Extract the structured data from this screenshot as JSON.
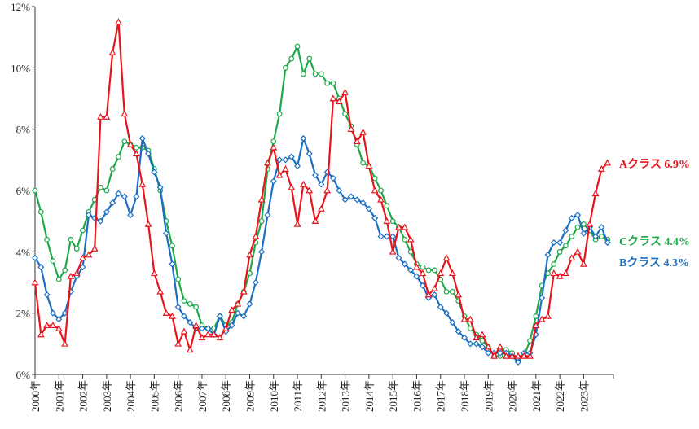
{
  "chart_data": {
    "type": "line",
    "title": "",
    "xlabel": "",
    "ylabel": "",
    "x_tick_labels": [
      "2000年",
      "2001年",
      "2002年",
      "2003年",
      "2004年",
      "2005年",
      "2006年",
      "2007年",
      "2008年",
      "2009年",
      "2010年",
      "2011年",
      "2012年",
      "2013年",
      "2014年",
      "2015年",
      "2016年",
      "2017年",
      "2018年",
      "2019年",
      "2020年",
      "2021年",
      "2022年",
      "2023年"
    ],
    "y_tick_labels": [
      "0%",
      "2%",
      "4%",
      "6%",
      "8%",
      "10%",
      "12%"
    ],
    "ylim": [
      0,
      12
    ],
    "xlim": [
      2000,
      2024.25
    ],
    "grid": false,
    "series": [
      {
        "name": "Aクラス",
        "label": "Aクラス 6.9%",
        "color": "#e8141c",
        "marker": "triangle",
        "x": [
          2000.0,
          2000.25,
          2000.5,
          2000.75,
          2001.0,
          2001.25,
          2001.5,
          2001.75,
          2002.0,
          2002.25,
          2002.5,
          2002.75,
          2003.0,
          2003.25,
          2003.5,
          2003.75,
          2004.0,
          2004.25,
          2004.5,
          2004.75,
          2005.0,
          2005.25,
          2005.5,
          2005.75,
          2006.0,
          2006.25,
          2006.5,
          2006.75,
          2007.0,
          2007.25,
          2007.5,
          2007.75,
          2008.0,
          2008.25,
          2008.5,
          2008.75,
          2009.0,
          2009.25,
          2009.5,
          2009.75,
          2010.0,
          2010.25,
          2010.5,
          2010.75,
          2011.0,
          2011.25,
          2011.5,
          2011.75,
          2012.0,
          2012.25,
          2012.5,
          2012.75,
          2013.0,
          2013.25,
          2013.5,
          2013.75,
          2014.0,
          2014.25,
          2014.5,
          2014.75,
          2015.0,
          2015.25,
          2015.5,
          2015.75,
          2016.0,
          2016.25,
          2016.5,
          2016.75,
          2017.0,
          2017.25,
          2017.5,
          2017.75,
          2018.0,
          2018.25,
          2018.5,
          2018.75,
          2019.0,
          2019.25,
          2019.5,
          2019.75,
          2020.0,
          2020.25,
          2020.5,
          2020.75,
          2021.0,
          2021.25,
          2021.5,
          2021.75,
          2022.0,
          2022.25,
          2022.5,
          2022.75,
          2023.0,
          2023.25,
          2023.5,
          2023.75,
          2024.0
        ],
        "values": [
          3.0,
          1.3,
          1.6,
          1.6,
          1.5,
          1.0,
          3.2,
          3.3,
          3.8,
          3.9,
          4.1,
          8.4,
          8.4,
          10.5,
          11.5,
          8.5,
          7.5,
          7.2,
          6.2,
          4.9,
          3.3,
          2.7,
          2.0,
          1.9,
          1.0,
          1.4,
          0.8,
          1.6,
          1.2,
          1.3,
          1.3,
          1.2,
          1.5,
          2.1,
          2.3,
          2.7,
          3.9,
          4.5,
          5.7,
          6.9,
          7.4,
          6.5,
          6.7,
          6.1,
          4.9,
          6.2,
          6.0,
          5.0,
          5.4,
          6.0,
          9.0,
          8.9,
          9.2,
          8.0,
          7.6,
          7.9,
          6.8,
          6.0,
          5.7,
          5.0,
          4.0,
          4.8,
          4.8,
          4.4,
          3.5,
          3.3,
          2.6,
          2.8,
          3.3,
          3.8,
          3.3,
          2.6,
          1.8,
          1.8,
          1.2,
          1.3,
          0.9,
          0.6,
          0.9,
          0.6,
          0.6,
          0.6,
          0.6,
          0.6,
          1.6,
          1.8,
          1.9,
          3.3,
          3.2,
          3.3,
          3.8,
          4.0,
          3.6,
          4.9,
          5.9,
          6.7,
          6.9
        ]
      },
      {
        "name": "Bクラス",
        "label": "Bクラス 4.3%",
        "color": "#1b6ec2",
        "marker": "diamond",
        "x": [
          2000.0,
          2000.25,
          2000.5,
          2000.75,
          2001.0,
          2001.25,
          2001.5,
          2001.75,
          2002.0,
          2002.25,
          2002.5,
          2002.75,
          2003.0,
          2003.25,
          2003.5,
          2003.75,
          2004.0,
          2004.25,
          2004.5,
          2004.75,
          2005.0,
          2005.25,
          2005.5,
          2005.75,
          2006.0,
          2006.25,
          2006.5,
          2006.75,
          2007.0,
          2007.25,
          2007.5,
          2007.75,
          2008.0,
          2008.25,
          2008.5,
          2008.75,
          2009.0,
          2009.25,
          2009.5,
          2009.75,
          2010.0,
          2010.25,
          2010.5,
          2010.75,
          2011.0,
          2011.25,
          2011.5,
          2011.75,
          2012.0,
          2012.25,
          2012.5,
          2012.75,
          2013.0,
          2013.25,
          2013.5,
          2013.75,
          2014.0,
          2014.25,
          2014.5,
          2014.75,
          2015.0,
          2015.25,
          2015.5,
          2015.75,
          2016.0,
          2016.25,
          2016.5,
          2016.75,
          2017.0,
          2017.25,
          2017.5,
          2017.75,
          2018.0,
          2018.25,
          2018.5,
          2018.75,
          2019.0,
          2019.25,
          2019.5,
          2019.75,
          2020.0,
          2020.25,
          2020.5,
          2020.75,
          2021.0,
          2021.25,
          2021.5,
          2021.75,
          2022.0,
          2022.25,
          2022.5,
          2022.75,
          2023.0,
          2023.25,
          2023.5,
          2023.75,
          2024.0
        ],
        "values": [
          3.8,
          3.5,
          2.6,
          2.0,
          1.8,
          2.0,
          2.7,
          3.2,
          3.5,
          5.2,
          5.1,
          5.0,
          5.3,
          5.6,
          5.9,
          5.8,
          5.2,
          5.8,
          7.7,
          7.2,
          6.6,
          6.1,
          4.6,
          3.6,
          2.2,
          1.9,
          1.7,
          1.5,
          1.5,
          1.5,
          1.3,
          1.9,
          1.4,
          1.6,
          2.0,
          1.9,
          2.3,
          3.0,
          4.0,
          5.2,
          6.3,
          7.0,
          7.0,
          7.1,
          6.8,
          7.7,
          7.2,
          6.5,
          6.2,
          6.6,
          6.4,
          6.0,
          5.7,
          5.8,
          5.7,
          5.6,
          5.4,
          5.1,
          4.5,
          4.5,
          4.5,
          3.8,
          3.6,
          3.4,
          3.2,
          2.9,
          2.5,
          2.6,
          2.2,
          2.0,
          1.7,
          1.4,
          1.2,
          1.0,
          1.0,
          0.9,
          0.7,
          0.7,
          0.7,
          0.7,
          0.6,
          0.4,
          0.7,
          0.7,
          1.3,
          2.5,
          3.9,
          4.3,
          4.3,
          4.7,
          5.1,
          5.2,
          4.6,
          4.8,
          4.5,
          4.8,
          4.3
        ]
      },
      {
        "name": "Cクラス",
        "label": "Cクラス 4.4%",
        "color": "#1ea84a",
        "marker": "circle",
        "x": [
          2000.0,
          2000.25,
          2000.5,
          2000.75,
          2001.0,
          2001.25,
          2001.5,
          2001.75,
          2002.0,
          2002.25,
          2002.5,
          2002.75,
          2003.0,
          2003.25,
          2003.5,
          2003.75,
          2004.0,
          2004.25,
          2004.5,
          2004.75,
          2005.0,
          2005.25,
          2005.5,
          2005.75,
          2006.0,
          2006.25,
          2006.5,
          2006.75,
          2007.0,
          2007.25,
          2007.5,
          2007.75,
          2008.0,
          2008.25,
          2008.5,
          2008.75,
          2009.0,
          2009.25,
          2009.5,
          2009.75,
          2010.0,
          2010.25,
          2010.5,
          2010.75,
          2011.0,
          2011.25,
          2011.5,
          2011.75,
          2012.0,
          2012.25,
          2012.5,
          2012.75,
          2013.0,
          2013.25,
          2013.5,
          2013.75,
          2014.0,
          2014.25,
          2014.5,
          2014.75,
          2015.0,
          2015.25,
          2015.5,
          2015.75,
          2016.0,
          2016.25,
          2016.5,
          2016.75,
          2017.0,
          2017.25,
          2017.5,
          2017.75,
          2018.0,
          2018.25,
          2018.5,
          2018.75,
          2019.0,
          2019.25,
          2019.5,
          2019.75,
          2020.0,
          2020.25,
          2020.5,
          2020.75,
          2021.0,
          2021.25,
          2021.5,
          2021.75,
          2022.0,
          2022.25,
          2022.5,
          2022.75,
          2023.0,
          2023.25,
          2023.5,
          2023.75,
          2024.0
        ],
        "values": [
          6.0,
          5.3,
          4.4,
          3.7,
          3.1,
          3.4,
          4.4,
          4.1,
          4.7,
          5.3,
          5.7,
          6.1,
          6.0,
          6.7,
          7.1,
          7.6,
          7.5,
          7.4,
          7.4,
          7.3,
          6.7,
          6.0,
          5.0,
          4.2,
          3.1,
          2.4,
          2.3,
          2.2,
          1.6,
          1.5,
          1.5,
          1.9,
          1.6,
          1.7,
          2.3,
          2.7,
          3.3,
          4.3,
          5.0,
          6.7,
          7.6,
          8.5,
          10.0,
          10.3,
          10.7,
          9.8,
          10.3,
          9.8,
          9.8,
          9.5,
          9.5,
          9.0,
          8.5,
          8.1,
          7.5,
          6.9,
          6.8,
          6.4,
          6.0,
          5.5,
          5.0,
          4.8,
          4.4,
          4.0,
          3.6,
          3.5,
          3.4,
          3.4,
          3.1,
          2.7,
          2.7,
          2.4,
          1.9,
          1.5,
          1.3,
          1.1,
          0.9,
          0.6,
          0.6,
          0.8,
          0.7,
          0.5,
          0.6,
          1.1,
          1.9,
          2.9,
          3.3,
          3.6,
          4.0,
          4.2,
          4.5,
          4.8,
          4.9,
          4.7,
          4.4,
          4.5,
          4.4
        ]
      }
    ]
  }
}
